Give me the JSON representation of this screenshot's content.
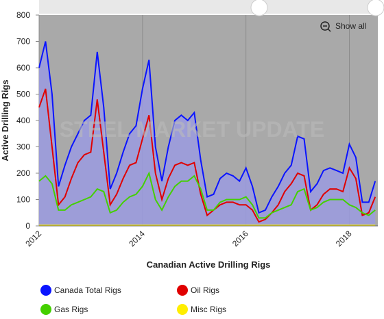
{
  "chart_data": {
    "type": "line",
    "title": "Canadian Active Drilling Rigs",
    "y_label": "Active Drilling Rigs",
    "watermark": "STEEL MARKET UPDATE",
    "button": "Show all",
    "x": [
      2012.0,
      2012.125,
      2012.25,
      2012.375,
      2012.5,
      2012.625,
      2012.75,
      2012.875,
      2013.0,
      2013.125,
      2013.25,
      2013.375,
      2013.5,
      2013.625,
      2013.75,
      2013.875,
      2014.0,
      2014.125,
      2014.25,
      2014.375,
      2014.5,
      2014.625,
      2014.75,
      2014.875,
      2015.0,
      2015.125,
      2015.25,
      2015.375,
      2015.5,
      2015.625,
      2015.75,
      2015.875,
      2016.0,
      2016.125,
      2016.25,
      2016.375,
      2016.5,
      2016.625,
      2016.75,
      2016.875,
      2017.0,
      2017.125,
      2017.25,
      2017.375,
      2017.5,
      2017.625,
      2017.75,
      2017.875,
      2018.0,
      2018.125,
      2018.25,
      2018.375,
      2018.5
    ],
    "xlim": [
      2012,
      2018.55
    ],
    "xticks": [
      2012,
      2014,
      2016,
      2018
    ],
    "ylim": [
      0,
      800
    ],
    "yticks": [
      0,
      100,
      200,
      300,
      400,
      500,
      600,
      700,
      800
    ],
    "xgrid": true,
    "series": [
      {
        "name": "Canada Total Rigs",
        "color": "#0a14ff",
        "area": true,
        "values": [
          600,
          700,
          500,
          150,
          230,
          300,
          350,
          400,
          420,
          660,
          450,
          140,
          200,
          280,
          350,
          380,
          520,
          630,
          300,
          170,
          300,
          400,
          420,
          400,
          430,
          250,
          110,
          120,
          180,
          200,
          190,
          170,
          220,
          150,
          50,
          60,
          110,
          150,
          200,
          230,
          340,
          330,
          130,
          160,
          210,
          220,
          210,
          200,
          310,
          260,
          90,
          90,
          170
        ]
      },
      {
        "name": "Oil Rigs",
        "color": "#e00000",
        "values": [
          450,
          520,
          300,
          80,
          110,
          180,
          240,
          270,
          280,
          480,
          280,
          80,
          120,
          180,
          230,
          240,
          330,
          420,
          200,
          100,
          180,
          230,
          240,
          230,
          240,
          120,
          40,
          60,
          80,
          90,
          90,
          80,
          80,
          60,
          15,
          25,
          50,
          80,
          130,
          160,
          200,
          190,
          60,
          80,
          120,
          140,
          140,
          130,
          220,
          180,
          40,
          50,
          110
        ]
      },
      {
        "name": "Gas Rigs",
        "color": "#44d000",
        "values": [
          170,
          190,
          160,
          60,
          60,
          80,
          90,
          100,
          110,
          140,
          130,
          50,
          60,
          90,
          110,
          120,
          150,
          200,
          100,
          60,
          110,
          150,
          170,
          170,
          190,
          140,
          60,
          60,
          90,
          100,
          100,
          100,
          110,
          80,
          30,
          30,
          50,
          60,
          70,
          80,
          130,
          140,
          60,
          70,
          90,
          100,
          100,
          100,
          80,
          70,
          50,
          40,
          60
        ]
      },
      {
        "name": "Misc Rigs",
        "color": "#ffee00",
        "values": [
          2,
          2,
          2,
          2,
          2,
          2,
          2,
          2,
          2,
          2,
          2,
          2,
          2,
          2,
          2,
          2,
          2,
          2,
          2,
          2,
          2,
          2,
          2,
          2,
          2,
          2,
          2,
          2,
          2,
          2,
          2,
          2,
          2,
          2,
          2,
          2,
          2,
          2,
          2,
          2,
          2,
          2,
          2,
          2,
          2,
          2,
          2,
          2,
          2,
          2,
          2,
          2,
          2
        ]
      }
    ]
  }
}
